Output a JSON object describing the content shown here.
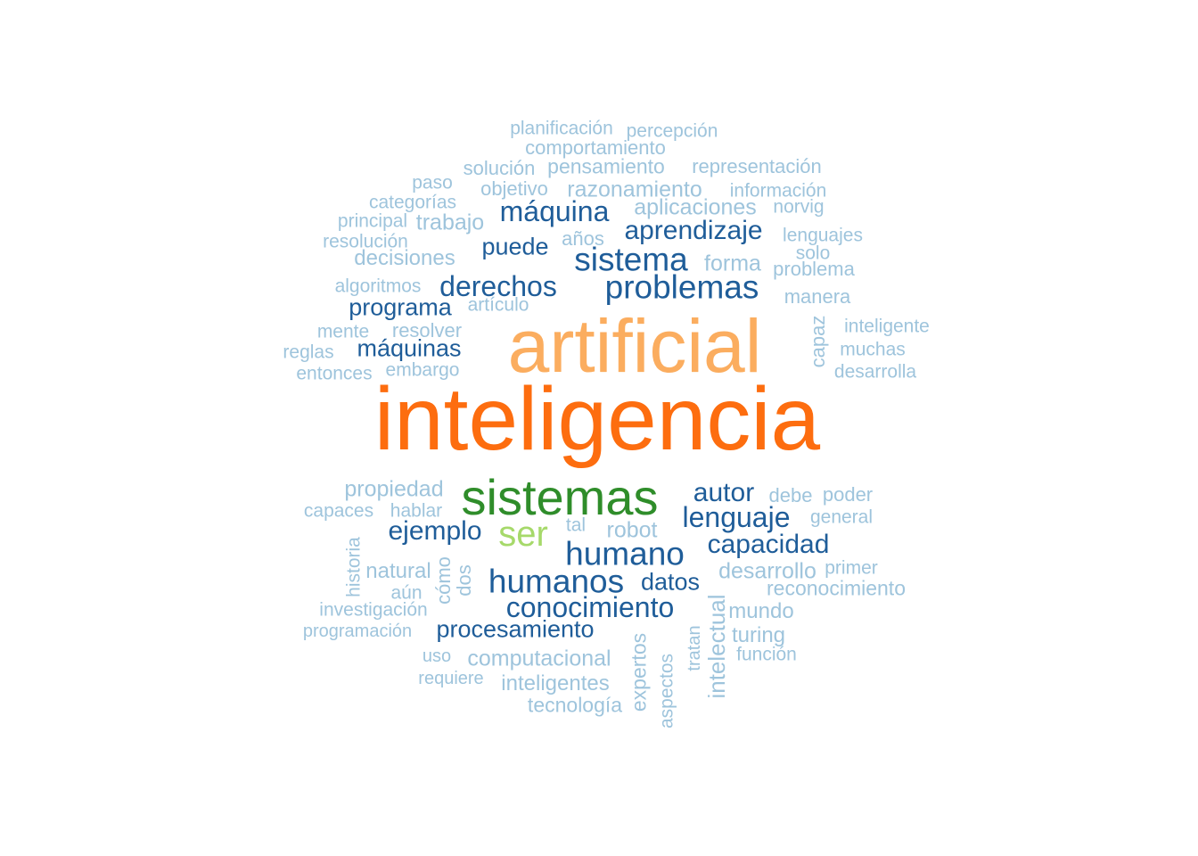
{
  "palette": {
    "orange": "#fd6d0f",
    "light_orange": "#fbad5f",
    "green": "#2f8d2a",
    "light_green": "#a6d96a",
    "dark_blue": "#1f5d99",
    "light_blue": "#9ec4dc"
  },
  "words": [
    {
      "text": "inteligencia",
      "color": "orange",
      "rank": 1
    },
    {
      "text": "artificial",
      "color": "light_orange",
      "rank": 2
    },
    {
      "text": "sistemas",
      "color": "green",
      "rank": 3
    },
    {
      "text": "ser",
      "color": "light_green",
      "rank": 4
    },
    {
      "text": "problemas",
      "color": "dark_blue",
      "rank": 5
    },
    {
      "text": "humano",
      "color": "dark_blue",
      "rank": 5
    },
    {
      "text": "humanos",
      "color": "dark_blue",
      "rank": 5
    },
    {
      "text": "sistema",
      "color": "dark_blue",
      "rank": 5
    },
    {
      "text": "derechos",
      "color": "dark_blue",
      "rank": 6
    },
    {
      "text": "conocimiento",
      "color": "dark_blue",
      "rank": 6
    },
    {
      "text": "lenguaje",
      "color": "dark_blue",
      "rank": 6
    },
    {
      "text": "máquina",
      "color": "dark_blue",
      "rank": 6
    },
    {
      "text": "aprendizaje",
      "color": "dark_blue",
      "rank": 6
    },
    {
      "text": "capacidad",
      "color": "dark_blue",
      "rank": 6
    },
    {
      "text": "autor",
      "color": "dark_blue",
      "rank": 6
    },
    {
      "text": "ejemplo",
      "color": "dark_blue",
      "rank": 6
    },
    {
      "text": "puede",
      "color": "dark_blue",
      "rank": 7
    },
    {
      "text": "programa",
      "color": "dark_blue",
      "rank": 7
    },
    {
      "text": "máquinas",
      "color": "dark_blue",
      "rank": 7
    },
    {
      "text": "procesamiento",
      "color": "dark_blue",
      "rank": 7
    },
    {
      "text": "datos",
      "color": "dark_blue",
      "rank": 7
    },
    {
      "text": "razonamiento",
      "color": "light_blue",
      "rank": 8
    },
    {
      "text": "aplicaciones",
      "color": "light_blue",
      "rank": 8
    },
    {
      "text": "trabajo",
      "color": "light_blue",
      "rank": 8
    },
    {
      "text": "forma",
      "color": "light_blue",
      "rank": 8
    },
    {
      "text": "decisiones",
      "color": "light_blue",
      "rank": 8
    },
    {
      "text": "propiedad",
      "color": "light_blue",
      "rank": 8
    },
    {
      "text": "robot",
      "color": "light_blue",
      "rank": 8
    },
    {
      "text": "desarrollo",
      "color": "light_blue",
      "rank": 8
    },
    {
      "text": "computacional",
      "color": "light_blue",
      "rank": 8
    },
    {
      "text": "reconocimiento",
      "color": "light_blue",
      "rank": 8
    },
    {
      "text": "mundo",
      "color": "light_blue",
      "rank": 8
    },
    {
      "text": "natural",
      "color": "light_blue",
      "rank": 8
    },
    {
      "text": "inteligentes",
      "color": "light_blue",
      "rank": 8
    },
    {
      "text": "intelectual",
      "color": "light_blue",
      "rank": 8,
      "vertical": true
    },
    {
      "text": "expertos",
      "color": "light_blue",
      "rank": 8,
      "vertical": true
    },
    {
      "text": "turing",
      "color": "light_blue",
      "rank": 8
    },
    {
      "text": "tecnología",
      "color": "light_blue",
      "rank": 8
    },
    {
      "text": "pensamiento",
      "color": "light_blue",
      "rank": 8
    },
    {
      "text": "representación",
      "color": "light_blue",
      "rank": 9
    },
    {
      "text": "comportamiento",
      "color": "light_blue",
      "rank": 9
    },
    {
      "text": "solución",
      "color": "light_blue",
      "rank": 9
    },
    {
      "text": "objetivo",
      "color": "light_blue",
      "rank": 9
    },
    {
      "text": "resolver",
      "color": "light_blue",
      "rank": 9
    },
    {
      "text": "problema",
      "color": "light_blue",
      "rank": 9
    },
    {
      "text": "manera",
      "color": "light_blue",
      "rank": 9
    },
    {
      "text": "años",
      "color": "light_blue",
      "rank": 9
    },
    {
      "text": "debe",
      "color": "light_blue",
      "rank": 9
    },
    {
      "text": "poder",
      "color": "light_blue",
      "rank": 9
    },
    {
      "text": "hablar",
      "color": "light_blue",
      "rank": 9
    },
    {
      "text": "capaces",
      "color": "light_blue",
      "rank": 9
    },
    {
      "text": "cómo",
      "color": "light_blue",
      "rank": 9,
      "vertical": true
    },
    {
      "text": "dos",
      "color": "light_blue",
      "rank": 9,
      "vertical": true
    },
    {
      "text": "capaz",
      "color": "light_blue",
      "rank": 9,
      "vertical": true
    },
    {
      "text": "investigación",
      "color": "light_blue",
      "rank": 9
    },
    {
      "text": "planificación",
      "color": "light_blue",
      "rank": 10
    },
    {
      "text": "percepción",
      "color": "light_blue",
      "rank": 10
    },
    {
      "text": "información",
      "color": "light_blue",
      "rank": 10
    },
    {
      "text": "categorías",
      "color": "light_blue",
      "rank": 10
    },
    {
      "text": "paso",
      "color": "light_blue",
      "rank": 10
    },
    {
      "text": "principal",
      "color": "light_blue",
      "rank": 10
    },
    {
      "text": "norvig",
      "color": "light_blue",
      "rank": 10
    },
    {
      "text": "resolución",
      "color": "light_blue",
      "rank": 10
    },
    {
      "text": "lenguajes",
      "color": "light_blue",
      "rank": 10
    },
    {
      "text": "solo",
      "color": "light_blue",
      "rank": 10
    },
    {
      "text": "algoritmos",
      "color": "light_blue",
      "rank": 10
    },
    {
      "text": "artículo",
      "color": "light_blue",
      "rank": 10
    },
    {
      "text": "inteligente",
      "color": "light_blue",
      "rank": 10
    },
    {
      "text": "mente",
      "color": "light_blue",
      "rank": 10
    },
    {
      "text": "muchas",
      "color": "light_blue",
      "rank": 10
    },
    {
      "text": "reglas",
      "color": "light_blue",
      "rank": 10
    },
    {
      "text": "embargo",
      "color": "light_blue",
      "rank": 10
    },
    {
      "text": "entonces",
      "color": "light_blue",
      "rank": 10
    },
    {
      "text": "desarrolla",
      "color": "light_blue",
      "rank": 10
    },
    {
      "text": "general",
      "color": "light_blue",
      "rank": 10
    },
    {
      "text": "tal",
      "color": "light_blue",
      "rank": 10
    },
    {
      "text": "historia",
      "color": "light_blue",
      "rank": 10,
      "vertical": true
    },
    {
      "text": "primer",
      "color": "light_blue",
      "rank": 10
    },
    {
      "text": "aún",
      "color": "light_blue",
      "rank": 10
    },
    {
      "text": "programación",
      "color": "light_blue",
      "rank": 10
    },
    {
      "text": "uso",
      "color": "light_blue",
      "rank": 10
    },
    {
      "text": "función",
      "color": "light_blue",
      "rank": 10
    },
    {
      "text": "requiere",
      "color": "light_blue",
      "rank": 10
    },
    {
      "text": "aspectos",
      "color": "light_blue",
      "rank": 10,
      "vertical": true
    },
    {
      "text": "tratan",
      "color": "light_blue",
      "rank": 10,
      "vertical": true
    }
  ]
}
